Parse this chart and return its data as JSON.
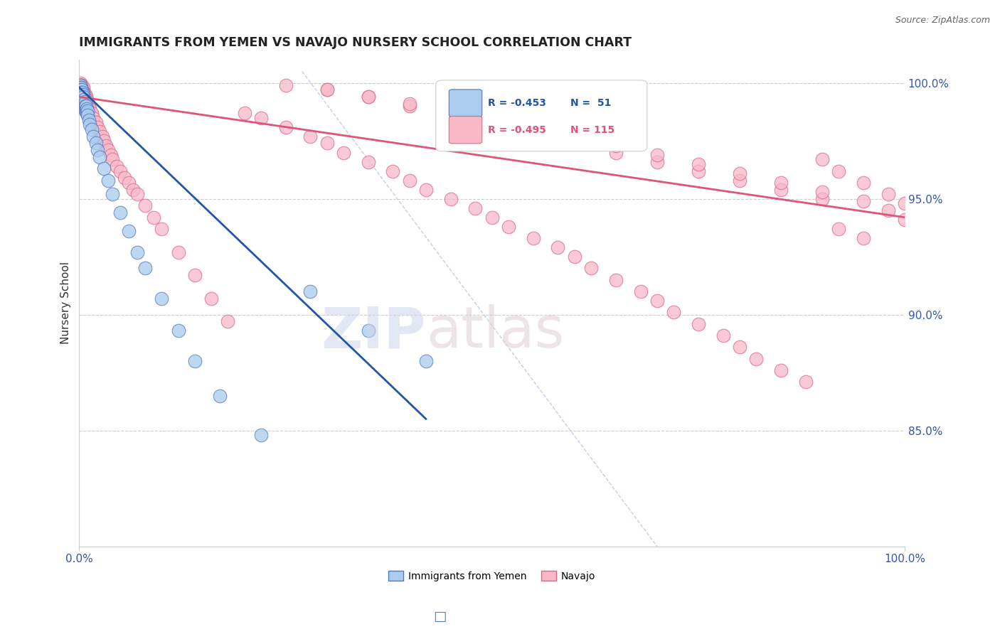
{
  "title": "IMMIGRANTS FROM YEMEN VS NAVAJO NURSERY SCHOOL CORRELATION CHART",
  "source_text": "Source: ZipAtlas.com",
  "ylabel": "Nursery School",
  "ylabel_right_labels": [
    "85.0%",
    "90.0%",
    "95.0%",
    "100.0%"
  ],
  "ylabel_right_values": [
    0.85,
    0.9,
    0.95,
    1.0
  ],
  "legend_blue_label": "Immigrants from Yemen",
  "legend_pink_label": "Navajo",
  "legend_R_blue": "R = -0.453",
  "legend_N_blue": "N =  51",
  "legend_R_pink": "R = -0.495",
  "legend_N_pink": "N = 115",
  "blue_color": "#AACCEE",
  "pink_color": "#F8B8C8",
  "blue_edge_color": "#5577BB",
  "pink_edge_color": "#DD6688",
  "trend_blue_color": "#2255AA",
  "trend_pink_color": "#DD5577",
  "xlim": [
    0.0,
    1.0
  ],
  "ylim": [
    0.8,
    1.01
  ],
  "blue_scatter_x": [
    0.001,
    0.001,
    0.001,
    0.002,
    0.002,
    0.002,
    0.002,
    0.003,
    0.003,
    0.003,
    0.003,
    0.004,
    0.004,
    0.004,
    0.005,
    0.005,
    0.005,
    0.006,
    0.006,
    0.006,
    0.007,
    0.007,
    0.007,
    0.008,
    0.008,
    0.009,
    0.009,
    0.01,
    0.01,
    0.012,
    0.013,
    0.015,
    0.017,
    0.02,
    0.022,
    0.025,
    0.03,
    0.035,
    0.04,
    0.05,
    0.06,
    0.07,
    0.08,
    0.1,
    0.12,
    0.14,
    0.17,
    0.22,
    0.28,
    0.35,
    0.42
  ],
  "blue_scatter_y": [
    0.999,
    0.998,
    0.997,
    0.998,
    0.997,
    0.996,
    0.995,
    0.997,
    0.996,
    0.995,
    0.994,
    0.996,
    0.995,
    0.993,
    0.995,
    0.994,
    0.992,
    0.993,
    0.991,
    0.99,
    0.992,
    0.99,
    0.988,
    0.99,
    0.988,
    0.989,
    0.987,
    0.988,
    0.986,
    0.984,
    0.982,
    0.98,
    0.977,
    0.974,
    0.971,
    0.968,
    0.963,
    0.958,
    0.952,
    0.944,
    0.936,
    0.927,
    0.92,
    0.907,
    0.893,
    0.88,
    0.865,
    0.848,
    0.91,
    0.893,
    0.88
  ],
  "pink_scatter_x": [
    0.001,
    0.001,
    0.002,
    0.002,
    0.002,
    0.003,
    0.003,
    0.003,
    0.004,
    0.004,
    0.004,
    0.005,
    0.005,
    0.005,
    0.006,
    0.006,
    0.007,
    0.007,
    0.008,
    0.008,
    0.009,
    0.009,
    0.01,
    0.01,
    0.012,
    0.013,
    0.015,
    0.017,
    0.02,
    0.022,
    0.025,
    0.028,
    0.03,
    0.032,
    0.035,
    0.038,
    0.04,
    0.045,
    0.05,
    0.055,
    0.06,
    0.065,
    0.07,
    0.08,
    0.09,
    0.1,
    0.12,
    0.14,
    0.16,
    0.18,
    0.2,
    0.22,
    0.25,
    0.28,
    0.3,
    0.32,
    0.35,
    0.38,
    0.4,
    0.42,
    0.45,
    0.48,
    0.5,
    0.52,
    0.55,
    0.58,
    0.6,
    0.62,
    0.65,
    0.68,
    0.7,
    0.72,
    0.75,
    0.78,
    0.8,
    0.82,
    0.85,
    0.88,
    0.9,
    0.92,
    0.95,
    0.98,
    1.0,
    0.3,
    0.35,
    0.4,
    0.45,
    0.5,
    0.55,
    0.6,
    0.65,
    0.7,
    0.75,
    0.8,
    0.85,
    0.9,
    0.25,
    0.3,
    0.35,
    0.4,
    0.45,
    0.5,
    0.55,
    0.6,
    0.65,
    0.7,
    0.75,
    0.8,
    0.85,
    0.9,
    0.95,
    0.98,
    1.0,
    0.92,
    0.95
  ],
  "pink_scatter_y": [
    1.0,
    0.999,
    0.999,
    0.998,
    0.999,
    0.998,
    0.997,
    0.999,
    0.997,
    0.998,
    0.996,
    0.997,
    0.996,
    0.998,
    0.996,
    0.995,
    0.995,
    0.994,
    0.994,
    0.993,
    0.993,
    0.992,
    0.992,
    0.991,
    0.99,
    0.989,
    0.987,
    0.985,
    0.983,
    0.981,
    0.979,
    0.977,
    0.975,
    0.973,
    0.971,
    0.969,
    0.967,
    0.964,
    0.962,
    0.959,
    0.957,
    0.954,
    0.952,
    0.947,
    0.942,
    0.937,
    0.927,
    0.917,
    0.907,
    0.897,
    0.987,
    0.985,
    0.981,
    0.977,
    0.974,
    0.97,
    0.966,
    0.962,
    0.958,
    0.954,
    0.95,
    0.946,
    0.942,
    0.938,
    0.933,
    0.929,
    0.925,
    0.92,
    0.915,
    0.91,
    0.906,
    0.901,
    0.896,
    0.891,
    0.886,
    0.881,
    0.876,
    0.871,
    0.967,
    0.962,
    0.957,
    0.952,
    0.948,
    0.997,
    0.994,
    0.99,
    0.986,
    0.982,
    0.978,
    0.974,
    0.97,
    0.966,
    0.962,
    0.958,
    0.954,
    0.95,
    0.999,
    0.997,
    0.994,
    0.991,
    0.988,
    0.985,
    0.981,
    0.977,
    0.973,
    0.969,
    0.965,
    0.961,
    0.957,
    0.953,
    0.949,
    0.945,
    0.941,
    0.937,
    0.933
  ],
  "blue_trend_x": [
    0.0,
    0.42
  ],
  "blue_trend_y": [
    0.998,
    0.855
  ],
  "pink_trend_x": [
    0.0,
    1.0
  ],
  "pink_trend_y": [
    0.994,
    0.942
  ],
  "dash_line_x": [
    0.27,
    0.7
  ],
  "dash_line_y": [
    1.005,
    0.8
  ]
}
